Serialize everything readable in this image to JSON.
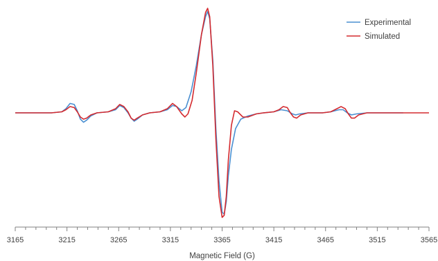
{
  "chart_data": {
    "type": "line",
    "title": "",
    "xlabel": "Magnetic Field (G)",
    "ylabel": "",
    "xlim": [
      3165,
      3565
    ],
    "ylim": [
      -1,
      1
    ],
    "xticks": [
      3165,
      3215,
      3265,
      3315,
      3365,
      3415,
      3465,
      3515,
      3565
    ],
    "grid": false,
    "legend_position": "top-right",
    "series": [
      {
        "name": "Experimental",
        "color": "#4a8fd1",
        "points": [
          [
            3165,
            0
          ],
          [
            3200,
            0
          ],
          [
            3210,
            0.01
          ],
          [
            3214,
            0.04
          ],
          [
            3218,
            0.09
          ],
          [
            3222,
            0.08
          ],
          [
            3225,
            0.02
          ],
          [
            3228,
            -0.06
          ],
          [
            3231,
            -0.09
          ],
          [
            3234,
            -0.07
          ],
          [
            3238,
            -0.03
          ],
          [
            3244,
            0
          ],
          [
            3255,
            0.01
          ],
          [
            3262,
            0.03
          ],
          [
            3266,
            0.07
          ],
          [
            3270,
            0.05
          ],
          [
            3274,
            0
          ],
          [
            3277,
            -0.05
          ],
          [
            3280,
            -0.08
          ],
          [
            3283,
            -0.06
          ],
          [
            3288,
            -0.02
          ],
          [
            3295,
            0
          ],
          [
            3305,
            0.01
          ],
          [
            3312,
            0.03
          ],
          [
            3317,
            0.07
          ],
          [
            3321,
            0.06
          ],
          [
            3326,
            0.02
          ],
          [
            3330,
            0.05
          ],
          [
            3335,
            0.2
          ],
          [
            3340,
            0.45
          ],
          [
            3345,
            0.75
          ],
          [
            3349,
            0.92
          ],
          [
            3351,
            0.97
          ],
          [
            3353,
            0.9
          ],
          [
            3356,
            0.5
          ],
          [
            3359,
            -0.15
          ],
          [
            3362,
            -0.65
          ],
          [
            3365,
            -0.95
          ],
          [
            3367,
            -0.97
          ],
          [
            3369,
            -0.85
          ],
          [
            3371,
            -0.6
          ],
          [
            3374,
            -0.35
          ],
          [
            3378,
            -0.15
          ],
          [
            3383,
            -0.06
          ],
          [
            3390,
            -0.03
          ],
          [
            3398,
            -0.01
          ],
          [
            3405,
            0
          ],
          [
            3415,
            0.01
          ],
          [
            3422,
            0.03
          ],
          [
            3428,
            0.02
          ],
          [
            3433,
            -0.01
          ],
          [
            3436,
            -0.02
          ],
          [
            3440,
            -0.01
          ],
          [
            3448,
            0
          ],
          [
            3462,
            0
          ],
          [
            3470,
            0.01
          ],
          [
            3478,
            0.03
          ],
          [
            3482,
            0.03
          ],
          [
            3486,
            0
          ],
          [
            3490,
            -0.02
          ],
          [
            3495,
            -0.01
          ],
          [
            3505,
            0
          ],
          [
            3520,
            0
          ],
          [
            3540,
            0
          ]
        ]
      },
      {
        "name": "Simulated",
        "color": "#d42a2f",
        "points": [
          [
            3165,
            0
          ],
          [
            3200,
            0
          ],
          [
            3210,
            0.01
          ],
          [
            3214,
            0.03
          ],
          [
            3218,
            0.06
          ],
          [
            3222,
            0.05
          ],
          [
            3225,
            0.01
          ],
          [
            3228,
            -0.04
          ],
          [
            3231,
            -0.06
          ],
          [
            3234,
            -0.05
          ],
          [
            3238,
            -0.02
          ],
          [
            3244,
            0
          ],
          [
            3255,
            0.01
          ],
          [
            3262,
            0.04
          ],
          [
            3266,
            0.08
          ],
          [
            3270,
            0.06
          ],
          [
            3274,
            0.01
          ],
          [
            3277,
            -0.05
          ],
          [
            3280,
            -0.07
          ],
          [
            3283,
            -0.05
          ],
          [
            3288,
            -0.02
          ],
          [
            3295,
            0
          ],
          [
            3305,
            0.01
          ],
          [
            3312,
            0.04
          ],
          [
            3317,
            0.09
          ],
          [
            3321,
            0.06
          ],
          [
            3326,
            -0.01
          ],
          [
            3329,
            -0.04
          ],
          [
            3332,
            -0.01
          ],
          [
            3336,
            0.12
          ],
          [
            3340,
            0.38
          ],
          [
            3345,
            0.75
          ],
          [
            3349,
            0.96
          ],
          [
            3351,
            1.0
          ],
          [
            3353,
            0.92
          ],
          [
            3356,
            0.45
          ],
          [
            3359,
            -0.25
          ],
          [
            3362,
            -0.8
          ],
          [
            3365,
            -1.0
          ],
          [
            3367,
            -0.98
          ],
          [
            3369,
            -0.8
          ],
          [
            3371,
            -0.45
          ],
          [
            3374,
            -0.12
          ],
          [
            3377,
            0.02
          ],
          [
            3380,
            0.01
          ],
          [
            3385,
            -0.04
          ],
          [
            3390,
            -0.04
          ],
          [
            3398,
            -0.01
          ],
          [
            3405,
            0
          ],
          [
            3415,
            0.01
          ],
          [
            3420,
            0.03
          ],
          [
            3424,
            0.06
          ],
          [
            3428,
            0.05
          ],
          [
            3431,
            0
          ],
          [
            3434,
            -0.04
          ],
          [
            3437,
            -0.05
          ],
          [
            3441,
            -0.02
          ],
          [
            3448,
            0
          ],
          [
            3462,
            0
          ],
          [
            3470,
            0.01
          ],
          [
            3476,
            0.04
          ],
          [
            3480,
            0.06
          ],
          [
            3484,
            0.04
          ],
          [
            3487,
            -0.01
          ],
          [
            3490,
            -0.05
          ],
          [
            3493,
            -0.05
          ],
          [
            3497,
            -0.02
          ],
          [
            3505,
            0
          ],
          [
            3520,
            0
          ],
          [
            3540,
            0
          ],
          [
            3565,
            0
          ]
        ]
      }
    ]
  }
}
